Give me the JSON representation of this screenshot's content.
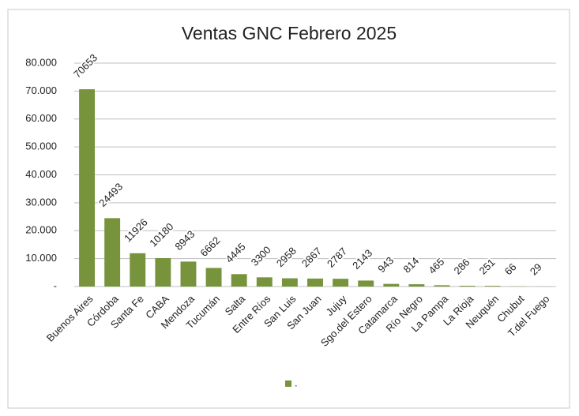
{
  "chart_data": {
    "type": "bar",
    "title": "Ventas GNC Febrero 2025",
    "categories": [
      "Buenos Aires",
      "Córdoba",
      "Santa Fe",
      "CABA",
      "Mendoza",
      "Tucumán",
      "Salta",
      "Entre Ríos",
      "San Luis",
      "San Juan",
      "Jujuy",
      "Sgo.del Estero",
      "Catamarca",
      "Río Negro",
      "La Pampa",
      "La Rioja",
      "Neuquén",
      "Chubut",
      "T.del Fuego"
    ],
    "series": [
      {
        "name": ".",
        "color": "#77933c",
        "values": [
          70653,
          24493,
          11926,
          10180,
          8943,
          6662,
          4445,
          3300,
          2958,
          2867,
          2787,
          2143,
          943,
          814,
          465,
          286,
          251,
          66,
          29
        ]
      }
    ],
    "ylim": [
      0,
      80000
    ],
    "yticks": [
      {
        "value": 0,
        "label": "-"
      },
      {
        "value": 10000,
        "label": "10.000"
      },
      {
        "value": 20000,
        "label": "20.000"
      },
      {
        "value": 30000,
        "label": "30.000"
      },
      {
        "value": 40000,
        "label": "40.000"
      },
      {
        "value": 50000,
        "label": "50.000"
      },
      {
        "value": 60000,
        "label": "60.000"
      },
      {
        "value": 70000,
        "label": "70.000"
      },
      {
        "value": 80000,
        "label": "80.000"
      }
    ],
    "grid": true,
    "legend": "bottom"
  }
}
